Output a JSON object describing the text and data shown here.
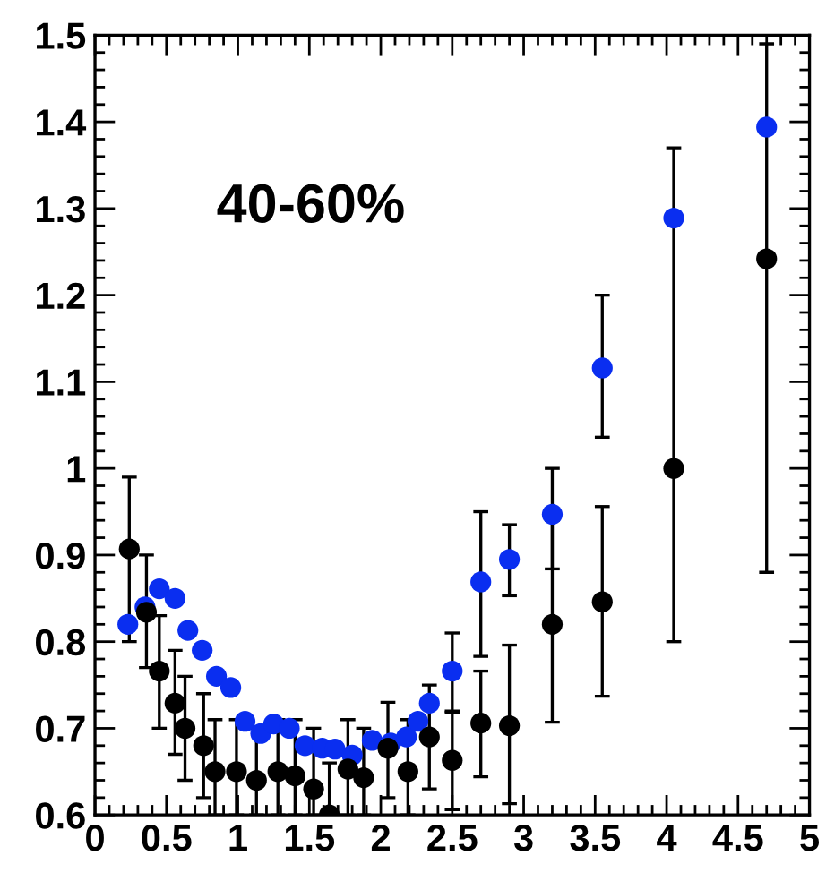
{
  "chart_data": {
    "type": "scatter",
    "marker": "circle",
    "grid": false,
    "annotations": [
      "40-60%"
    ],
    "xlim": [
      0,
      5
    ],
    "xticks": [
      0,
      0.5,
      1,
      1.5,
      2,
      2.5,
      3,
      3.5,
      4,
      4.5,
      5
    ],
    "ylim": [
      0.6,
      1.5
    ],
    "yticks": [
      0.6,
      0.7,
      0.8,
      0.9,
      1,
      1.1,
      1.2,
      1.3,
      1.4,
      1.5
    ],
    "series": [
      {
        "color": "#0a2ef0",
        "x": [
          0.23,
          0.35,
          0.45,
          0.56,
          0.65,
          0.75,
          0.85,
          0.95,
          1.05,
          1.16,
          1.25,
          1.36,
          1.47,
          1.59,
          1.68,
          1.8,
          1.94,
          2.07,
          2.18,
          2.26,
          2.34,
          2.5,
          2.7,
          2.9,
          3.2,
          3.55,
          4.05,
          4.7
        ],
        "values": [
          0.82,
          0.84,
          0.861,
          0.85,
          0.813,
          0.79,
          0.76,
          0.747,
          0.708,
          0.694,
          0.705,
          0.7,
          0.68,
          0.677,
          0.676,
          0.669,
          0.686,
          0.683,
          0.69,
          0.708,
          0.729,
          0.766,
          0.869,
          0.895,
          0.947,
          1.116,
          1.289,
          1.394
        ],
        "errors": [
          null,
          null,
          null,
          null,
          null,
          null,
          null,
          null,
          null,
          null,
          null,
          null,
          null,
          null,
          null,
          null,
          null,
          null,
          null,
          null,
          null,
          [
            0.72,
            0.81
          ],
          [
            0.783,
            0.95
          ],
          [
            0.853,
            0.935
          ],
          [
            0.884,
            1.0
          ],
          [
            1.036,
            1.2
          ],
          null,
          null
        ]
      },
      {
        "color": "#000000",
        "x": [
          0.24,
          0.36,
          0.45,
          0.56,
          0.63,
          0.76,
          0.84,
          0.99,
          1.13,
          1.28,
          1.4,
          1.53,
          1.64,
          1.77,
          1.88,
          2.05,
          2.19,
          2.34,
          2.5,
          2.7,
          2.9,
          3.2,
          3.55,
          4.05,
          4.7
        ],
        "values": [
          0.907,
          0.834,
          0.766,
          0.729,
          0.7,
          0.68,
          0.65,
          0.65,
          0.64,
          0.65,
          0.645,
          0.63,
          0.6,
          0.653,
          0.643,
          0.677,
          0.65,
          0.69,
          0.663,
          0.706,
          0.703,
          0.82,
          0.846,
          1.0,
          1.242
        ],
        "errors": [
          [
            0.8,
            0.99
          ],
          [
            0.77,
            0.9
          ],
          [
            0.7,
            0.83
          ],
          [
            0.67,
            0.79
          ],
          [
            0.64,
            0.76
          ],
          [
            0.62,
            0.74
          ],
          [
            0.6,
            0.71
          ],
          [
            0.6,
            0.71
          ],
          [
            0.6,
            0.7
          ],
          [
            0.6,
            0.71
          ],
          [
            0.6,
            0.71
          ],
          [
            0.6,
            0.7
          ],
          [
            0.6,
            0.66
          ],
          [
            0.6,
            0.71
          ],
          [
            0.6,
            0.7
          ],
          [
            0.62,
            0.73
          ],
          [
            0.6,
            0.71
          ],
          [
            0.63,
            0.75
          ],
          [
            0.606,
            0.718
          ],
          [
            0.644,
            0.766
          ],
          [
            0.613,
            0.796
          ],
          [
            0.707,
            0.94
          ],
          [
            0.737,
            0.956
          ],
          [
            0.8,
            1.37
          ],
          [
            0.88,
            1.49
          ]
        ]
      }
    ]
  }
}
